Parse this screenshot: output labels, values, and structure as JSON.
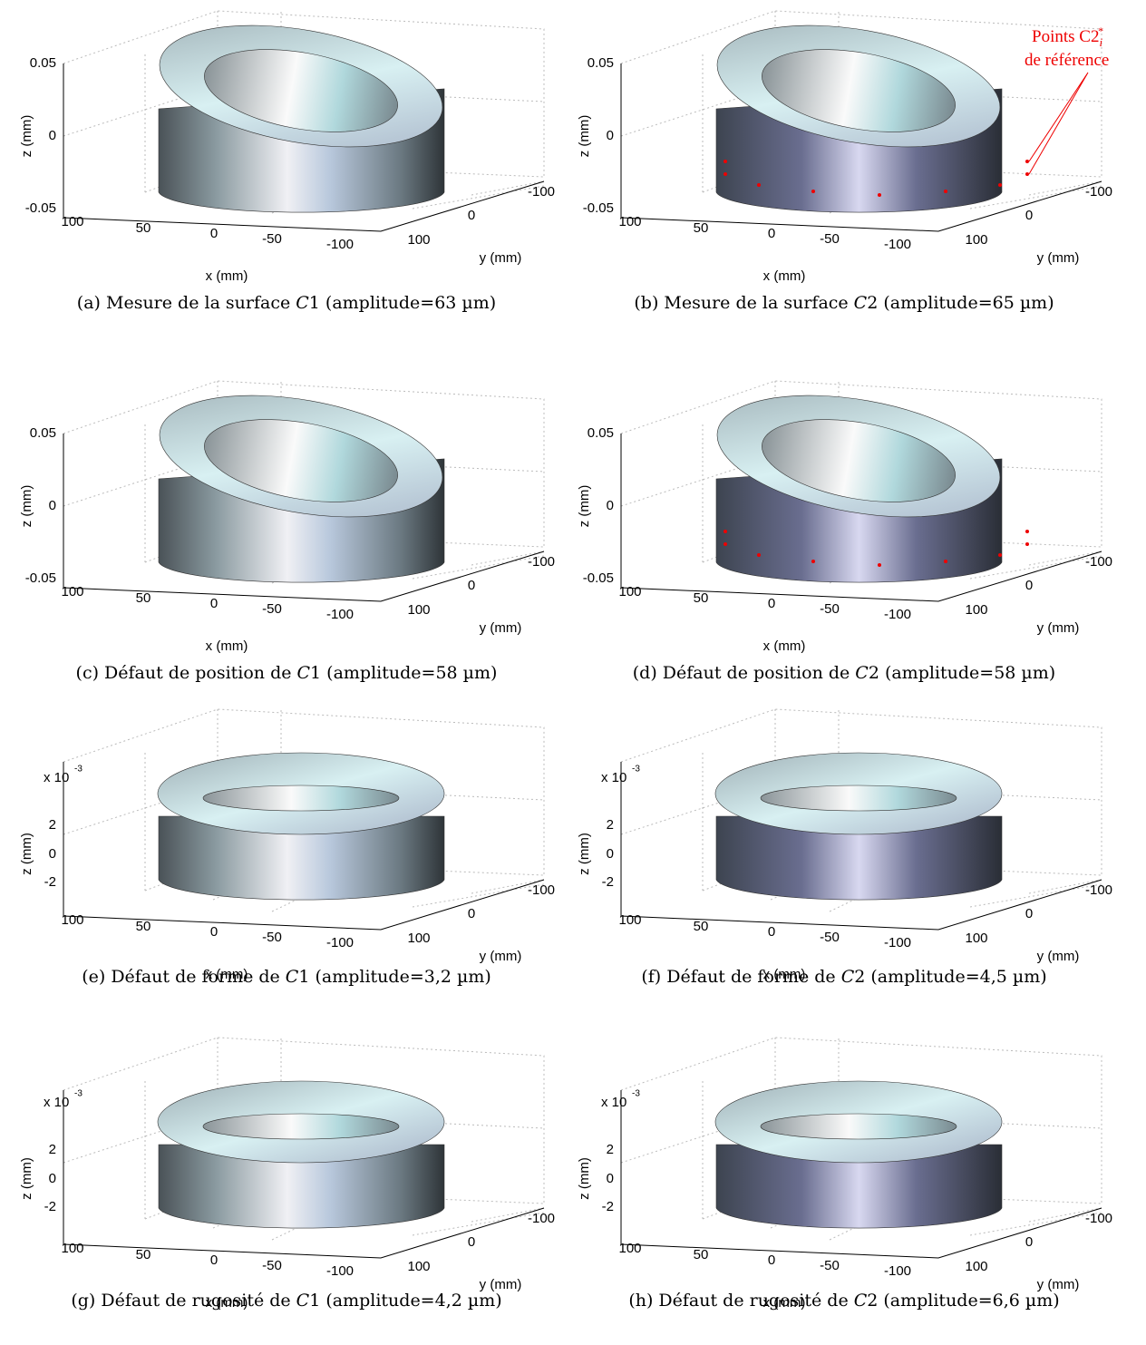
{
  "annotation": {
    "line1": "Points C2",
    "sub": "i",
    "sup": "*",
    "line2": "de référence"
  },
  "panels": [
    {
      "z_label": "z (mm)",
      "x_label": "x (mm)",
      "y_label": "y (mm)",
      "z_ticks": [
        "0.05",
        "0",
        "-0.05"
      ],
      "x_ticks": [
        "100",
        "50",
        "0",
        "-50",
        "-100"
      ],
      "y_ticks": [
        "-100",
        "0",
        "100"
      ],
      "caption_pre": "(a) Mesure de la surface",
      "caption_var": "C",
      "caption_post": "1 (amplitude=63 µm)"
    },
    {
      "z_label": "z (mm)",
      "x_label": "x (mm)",
      "y_label": "y (mm)",
      "z_ticks": [
        "0.05",
        "0",
        "-0.05"
      ],
      "x_ticks": [
        "100",
        "50",
        "0",
        "-50",
        "-100"
      ],
      "y_ticks": [
        "-100",
        "0",
        "100"
      ],
      "caption_pre": "(b) Mesure de la surface",
      "caption_var": "C",
      "caption_post": "2 (amplitude=65 µm)"
    },
    {
      "z_label": "z (mm)",
      "x_label": "x (mm)",
      "y_label": "y (mm)",
      "z_ticks": [
        "0.05",
        "0",
        "-0.05"
      ],
      "x_ticks": [
        "100",
        "50",
        "0",
        "-50",
        "-100"
      ],
      "y_ticks": [
        "-100",
        "0",
        "100"
      ],
      "caption_pre": "(c) Défaut de position de",
      "caption_var": "C",
      "caption_post": "1 (amplitude=58 µm)"
    },
    {
      "z_label": "z (mm)",
      "x_label": "x (mm)",
      "y_label": "y (mm)",
      "z_ticks": [
        "0.05",
        "0",
        "-0.05"
      ],
      "x_ticks": [
        "100",
        "50",
        "0",
        "-50",
        "-100"
      ],
      "y_ticks": [
        "-100",
        "0",
        "100"
      ],
      "caption_pre": "(d) Défaut de position de",
      "caption_var": "C",
      "caption_post": "2 (amplitude=58 µm)"
    },
    {
      "z_label": "z (mm)",
      "x_label": "x (mm)",
      "y_label": "y (mm)",
      "z_exponent": "x 10",
      "z_exponent_power": "-3",
      "z_ticks": [
        "2",
        "0",
        "-2"
      ],
      "x_ticks": [
        "100",
        "50",
        "0",
        "-50",
        "-100"
      ],
      "y_ticks": [
        "-100",
        "0",
        "100"
      ],
      "caption_pre": "(e) Défaut de forme de",
      "caption_var": "C",
      "caption_post": "1 (amplitude=3,2 µm)"
    },
    {
      "z_label": "z (mm)",
      "x_label": "x (mm)",
      "y_label": "y (mm)",
      "z_exponent": "x 10",
      "z_exponent_power": "-3",
      "z_ticks": [
        "2",
        "0",
        "-2"
      ],
      "x_ticks": [
        "100",
        "50",
        "0",
        "-50",
        "-100"
      ],
      "y_ticks": [
        "-100",
        "0",
        "100"
      ],
      "caption_pre": "(f) Défaut de forme de",
      "caption_var": "C",
      "caption_post": "2 (amplitude=4,5 µm)"
    },
    {
      "z_label": "z (mm)",
      "x_label": "x (mm)",
      "y_label": "y (mm)",
      "z_exponent": "x 10",
      "z_exponent_power": "-3",
      "z_ticks": [
        "2",
        "0",
        "-2"
      ],
      "x_ticks": [
        "100",
        "50",
        "0",
        "-50",
        "-100"
      ],
      "y_ticks": [
        "-100",
        "0",
        "100"
      ],
      "caption_pre": "(g) Défaut de rugosité de",
      "caption_var": "C",
      "caption_post": "1 (amplitude=4,2 µm)"
    },
    {
      "z_label": "z (mm)",
      "x_label": "x (mm)",
      "y_label": "y (mm)",
      "z_exponent": "x 10",
      "z_exponent_power": "-3",
      "z_ticks": [
        "2",
        "0",
        "-2"
      ],
      "x_ticks": [
        "100",
        "50",
        "0",
        "-50",
        "-100"
      ],
      "y_ticks": [
        "-100",
        "0",
        "100"
      ],
      "caption_pre": "(h) Défaut de rugosité de",
      "caption_var": "C",
      "caption_post": "2 (amplitude=6,6 µm)"
    }
  ]
}
